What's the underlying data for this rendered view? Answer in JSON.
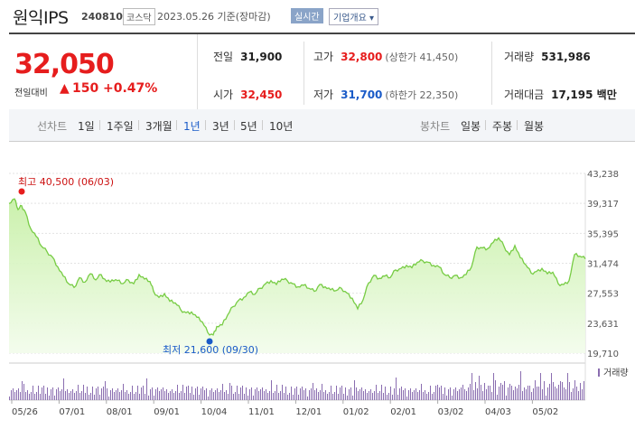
{
  "header": {
    "name": "원익IPS",
    "code": "240810",
    "market": "코스닥",
    "date": "2023.05.26 기준(장마감)",
    "live_label": "실시간",
    "corp_label": "기업개요"
  },
  "quote": {
    "price": "32,050",
    "change_label": "전일대비",
    "change_arrow": "▲",
    "change": "150",
    "change_pct": "+0.47%",
    "prev_label": "전일",
    "prev": "31,900",
    "open_label": "시가",
    "open": "32,450",
    "high_label": "고가",
    "high": "32,800",
    "upper_limit": "(상한가 41,450)",
    "low_label": "저가",
    "low": "31,700",
    "lower_limit": "(하한가 22,350)",
    "volume_label": "거래량",
    "volume": "531,986",
    "amount_label": "거래대금",
    "amount": "17,195 백만"
  },
  "period_tabs": {
    "label": "선차트",
    "items": [
      "1일",
      "1주일",
      "3개월",
      "1년",
      "3년",
      "5년",
      "10년"
    ],
    "active": "1년"
  },
  "candle_tabs": {
    "label": "봉차트",
    "items": [
      "일봉",
      "주봉",
      "월봉"
    ]
  },
  "colors": {
    "up": "#e61d1d",
    "down": "#1a5bc8",
    "line": "#77cc44",
    "volume": "#8a6db0"
  },
  "chart_data": {
    "type": "area",
    "y_ticks": [
      "43,238",
      "39,317",
      "35,395",
      "31,474",
      "27,553",
      "23,631",
      "19,710"
    ],
    "ylim": [
      19710,
      43238
    ],
    "x_ticks": [
      "05/26",
      "07/01",
      "08/01",
      "09/01",
      "10/04",
      "11/01",
      "12/01",
      "01/02",
      "02/01",
      "03/02",
      "04/03",
      "05/02"
    ],
    "max_label": "최고 40,500 (06/03)",
    "min_label": "최저 21,600 (09/30)",
    "volume_legend": "거래량",
    "price_points": [
      [
        0,
        39300
      ],
      [
        6,
        39900
      ],
      [
        10,
        38500
      ],
      [
        14,
        39000
      ],
      [
        18,
        38200
      ],
      [
        24,
        36000
      ],
      [
        30,
        35000
      ],
      [
        36,
        33700
      ],
      [
        42,
        33000
      ],
      [
        48,
        32300
      ],
      [
        54,
        31000
      ],
      [
        60,
        29800
      ],
      [
        66,
        28800
      ],
      [
        72,
        28300
      ],
      [
        78,
        29600
      ],
      [
        84,
        29000
      ],
      [
        90,
        30100
      ],
      [
        96,
        29300
      ],
      [
        102,
        30000
      ],
      [
        108,
        29100
      ],
      [
        114,
        29300
      ],
      [
        120,
        29200
      ],
      [
        126,
        28800
      ],
      [
        132,
        29300
      ],
      [
        138,
        28800
      ],
      [
        144,
        30000
      ],
      [
        150,
        29400
      ],
      [
        156,
        29100
      ],
      [
        160,
        27800
      ],
      [
        166,
        27000
      ],
      [
        172,
        27500
      ],
      [
        178,
        26500
      ],
      [
        184,
        26300
      ],
      [
        190,
        25400
      ],
      [
        196,
        25000
      ],
      [
        202,
        25100
      ],
      [
        208,
        24400
      ],
      [
        214,
        23800
      ],
      [
        220,
        22400
      ],
      [
        226,
        22100
      ],
      [
        230,
        23200
      ],
      [
        236,
        23400
      ],
      [
        242,
        24700
      ],
      [
        248,
        25800
      ],
      [
        254,
        26600
      ],
      [
        260,
        27000
      ],
      [
        266,
        27700
      ],
      [
        272,
        27400
      ],
      [
        278,
        28200
      ],
      [
        284,
        28800
      ],
      [
        290,
        29200
      ],
      [
        296,
        28700
      ],
      [
        302,
        29400
      ],
      [
        308,
        29200
      ],
      [
        314,
        28800
      ],
      [
        320,
        28400
      ],
      [
        326,
        28600
      ],
      [
        332,
        28200
      ],
      [
        338,
        27800
      ],
      [
        344,
        28700
      ],
      [
        350,
        28400
      ],
      [
        356,
        28000
      ],
      [
        362,
        27900
      ],
      [
        368,
        28200
      ],
      [
        374,
        27600
      ],
      [
        380,
        26900
      ],
      [
        386,
        25500
      ],
      [
        392,
        26700
      ],
      [
        398,
        28900
      ],
      [
        404,
        29900
      ],
      [
        410,
        29500
      ],
      [
        416,
        29800
      ],
      [
        422,
        29600
      ],
      [
        428,
        30600
      ],
      [
        434,
        30800
      ],
      [
        440,
        31200
      ],
      [
        446,
        30900
      ],
      [
        452,
        31600
      ],
      [
        458,
        31800
      ],
      [
        464,
        31600
      ],
      [
        470,
        31200
      ],
      [
        476,
        31000
      ],
      [
        482,
        30000
      ],
      [
        488,
        29600
      ],
      [
        494,
        29900
      ],
      [
        500,
        29600
      ],
      [
        506,
        30000
      ],
      [
        512,
        31000
      ],
      [
        518,
        33600
      ],
      [
        524,
        33500
      ],
      [
        530,
        33400
      ],
      [
        536,
        34200
      ],
      [
        542,
        34800
      ],
      [
        548,
        33700
      ],
      [
        554,
        32600
      ],
      [
        560,
        33800
      ],
      [
        566,
        32200
      ],
      [
        572,
        31300
      ],
      [
        578,
        30200
      ],
      [
        584,
        30400
      ],
      [
        590,
        30800
      ],
      [
        596,
        30100
      ],
      [
        602,
        30300
      ],
      [
        608,
        28800
      ],
      [
        614,
        28700
      ],
      [
        620,
        29200
      ],
      [
        626,
        32600
      ],
      [
        632,
        32400
      ],
      [
        638,
        32050
      ]
    ]
  }
}
